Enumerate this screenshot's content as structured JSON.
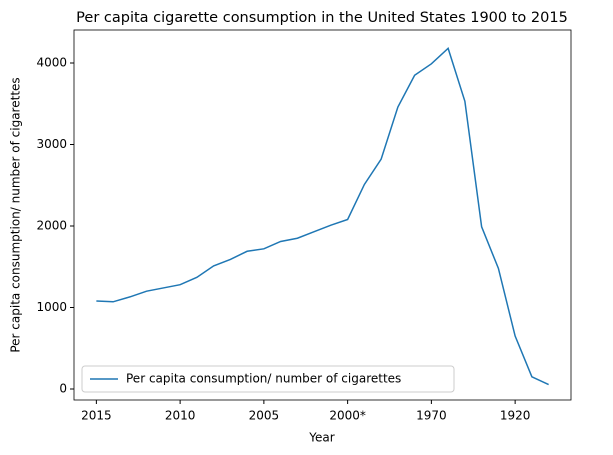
{
  "chart_data": {
    "type": "line",
    "title": "Per capita cigarette consumption in the United States 1900 to 2015",
    "xlabel": "Year",
    "ylabel": "Per capita consumption/ number of cigarettes",
    "categories": [
      "2015",
      null,
      null,
      null,
      null,
      "2010",
      null,
      null,
      null,
      null,
      "2005",
      null,
      null,
      null,
      null,
      "2000*",
      null,
      null,
      null,
      null,
      "1970",
      null,
      null,
      null,
      null,
      "1920",
      null,
      null
    ],
    "series": [
      {
        "name": "Per capita consumption/ number of cigarettes",
        "color": "#1f77b4",
        "values": [
          1080,
          1070,
          1130,
          1200,
          1240,
          1280,
          1370,
          1510,
          1590,
          1690,
          1720,
          1810,
          1850,
          1930,
          2010,
          2080,
          2510,
          2820,
          3460,
          3850,
          3990,
          4180,
          3530,
          1990,
          1480,
          650,
          150,
          54
        ]
      }
    ],
    "ylim": [
      -135,
      4405
    ],
    "yticks": [
      0,
      1000,
      2000,
      3000,
      4000
    ],
    "legend": "lower left"
  }
}
